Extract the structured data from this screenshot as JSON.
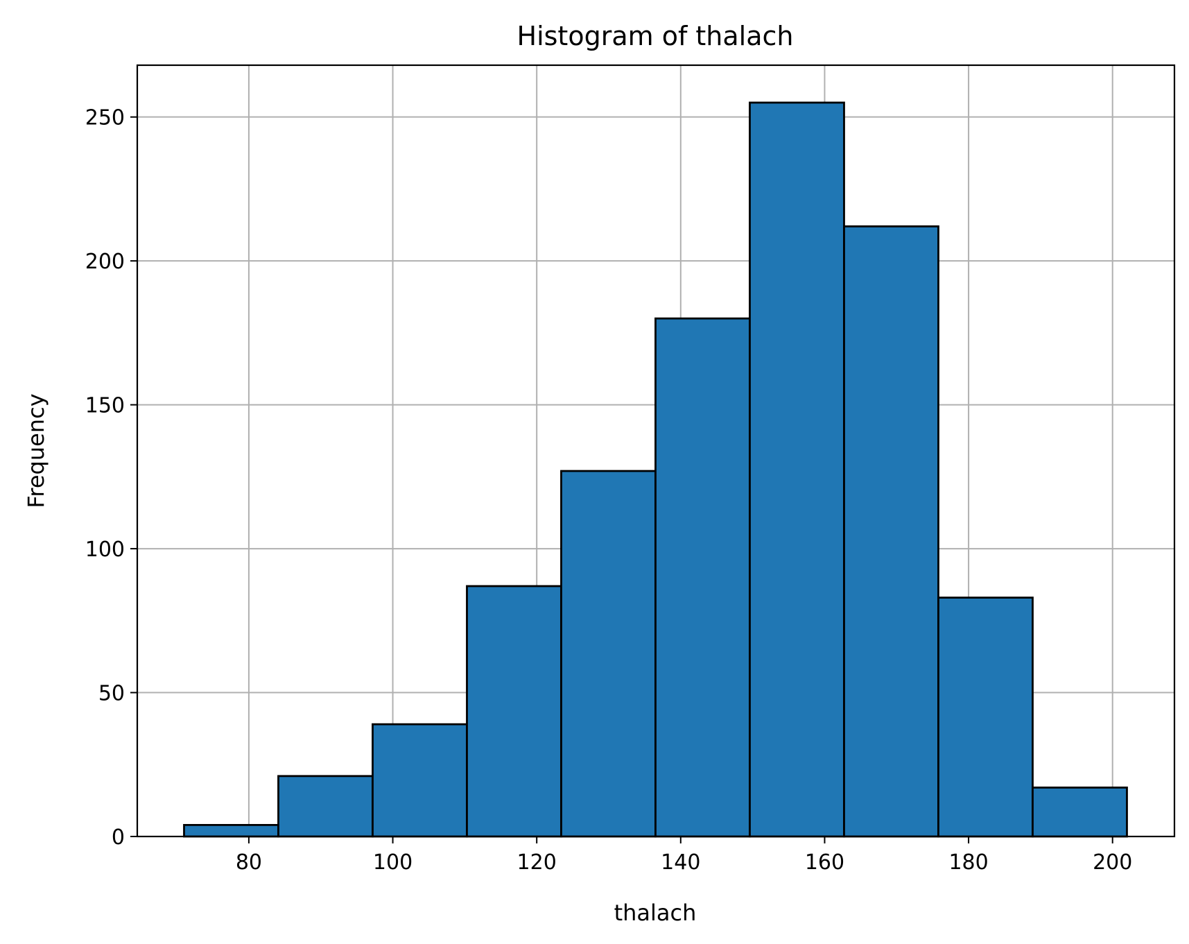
{
  "chart_data": {
    "type": "bar",
    "title": "Histogram of thalach",
    "xlabel": "thalach",
    "ylabel": "Frequency",
    "xlim": [
      64.5,
      208.6
    ],
    "ylim": [
      0,
      268
    ],
    "grid": true,
    "x_ticks": [
      80,
      100,
      120,
      140,
      160,
      180,
      200
    ],
    "y_ticks": [
      0,
      50,
      100,
      150,
      200,
      250
    ],
    "bin_edges": [
      71,
      84.1,
      97.2,
      110.3,
      123.4,
      136.5,
      149.6,
      162.7,
      175.8,
      188.9,
      202
    ],
    "values": [
      4,
      21,
      39,
      87,
      127,
      180,
      255,
      212,
      83,
      17
    ],
    "colors": {
      "bar_fill": "#2077b4",
      "bar_edge": "#000000",
      "grid": "#b0b0b0"
    }
  }
}
